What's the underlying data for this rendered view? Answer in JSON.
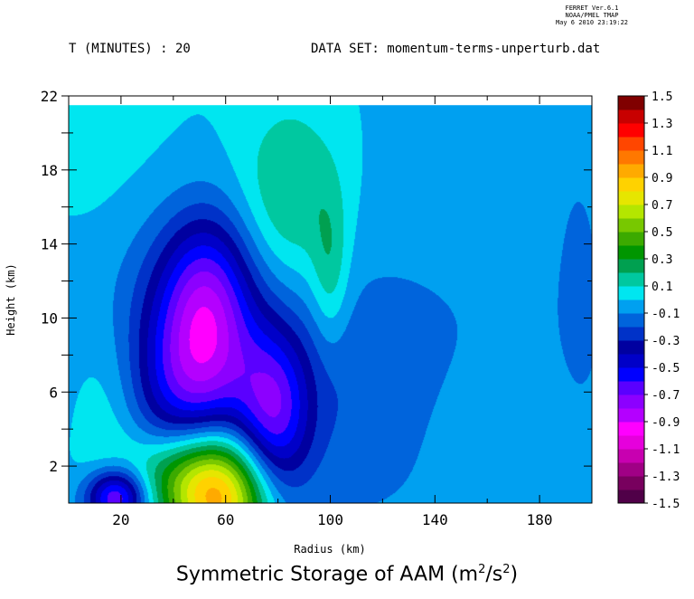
{
  "header": {
    "time_label": "T (MINUTES) : 20",
    "dataset_label": "DATA SET: momentum-terms-unperturb.dat",
    "stamp_line1": "FERRET Ver.6.1",
    "stamp_line2": "NOAA/PMEL TMAP",
    "stamp_line3": "May 6 2010 23:19:22"
  },
  "chart_data": {
    "type": "heatmap",
    "title_main": "Symmetric Storage of AAM (m",
    "title_sup1": "2",
    "title_mid": "/s",
    "title_sup2": "2",
    "title_end": ")",
    "xlabel": "Radius (km)",
    "ylabel": "Height (km)",
    "xlim": [
      0,
      200
    ],
    "ylim": [
      0,
      22
    ],
    "data_top": 21.5,
    "x_ticks": [
      "20",
      "60",
      "100",
      "140",
      "180"
    ],
    "y_ticks": [
      "2",
      "6",
      "10",
      "14",
      "18",
      "22"
    ],
    "background_level": 0.0,
    "colorbar": {
      "levels": [
        -1.5,
        -1.4,
        -1.3,
        -1.2,
        -1.1,
        -1.0,
        -0.9,
        -0.8,
        -0.7,
        -0.6,
        -0.5,
        -0.4,
        -0.3,
        -0.2,
        -0.1,
        0.0,
        0.1,
        0.2,
        0.3,
        0.4,
        0.5,
        0.6,
        0.7,
        0.8,
        0.9,
        1.0,
        1.1,
        1.2,
        1.3,
        1.4,
        1.5
      ],
      "colors": [
        "#500048",
        "#78005e",
        "#a00085",
        "#c800b0",
        "#e600dc",
        "#ff00ff",
        "#b400ff",
        "#8c00ff",
        "#5a00ff",
        "#0000ff",
        "#0000c8",
        "#0000a0",
        "#0032c8",
        "#0064dc",
        "#00a0f0",
        "#00e6f0",
        "#00c8a0",
        "#00a050",
        "#009600",
        "#3caa00",
        "#78c800",
        "#b4e600",
        "#e6e600",
        "#ffd200",
        "#ffaa00",
        "#ff7800",
        "#ff4600",
        "#ff0000",
        "#c80000",
        "#800000"
      ],
      "tick_labels": [
        "-1.5",
        "-1.3",
        "-1.1",
        "-0.9",
        "-0.7",
        "-0.5",
        "-0.3",
        "-0.1",
        "0.1",
        "0.3",
        "0.5",
        "0.7",
        "0.9",
        "1.1",
        "1.3",
        "1.5"
      ]
    },
    "features": [
      {
        "x": 100,
        "y": 5.5,
        "a": -0.12,
        "sx": 120,
        "sy": 8
      },
      {
        "x": 25,
        "y": 9.5,
        "a": -0.12,
        "sx": 18,
        "sy": 5
      },
      {
        "x": 110,
        "y": 6.8,
        "a": -0.08,
        "sx": 25,
        "sy": 3.5
      },
      {
        "x": 160,
        "y": 4.5,
        "a": 0.07,
        "sx": 25,
        "sy": 3
      },
      {
        "x": 22,
        "y": 16.5,
        "a": 0.07,
        "sx": 30,
        "sy": 4
      },
      {
        "x": 14,
        "y": 4.5,
        "a": 0.2,
        "sx": 12,
        "sy": 5
      },
      {
        "x": 38,
        "y": 1.7,
        "a": 0.22,
        "sx": 14,
        "sy": 1.5
      },
      {
        "x": 18,
        "y": 0.3,
        "a": -0.75,
        "sx": 8,
        "sy": 1.1
      },
      {
        "x": 54,
        "y": 9,
        "a": -0.58,
        "sx": 12,
        "sy": 4
      },
      {
        "x": 78,
        "y": 4.8,
        "a": -0.58,
        "sx": 10,
        "sy": 3.3
      },
      {
        "x": 50,
        "y": 12,
        "a": -0.22,
        "sx": 14,
        "sy": 3
      },
      {
        "x": 40,
        "y": 6.5,
        "a": -0.25,
        "sx": 12,
        "sy": 3
      },
      {
        "x": 57,
        "y": 0.4,
        "a": 1.05,
        "sx": 14,
        "sy": 2.4
      },
      {
        "x": 85,
        "y": 16.5,
        "a": 0.24,
        "sx": 14,
        "sy": 3.5
      },
      {
        "x": 100,
        "y": 12.5,
        "a": 0.2,
        "sx": 5,
        "sy": 3
      },
      {
        "x": 195,
        "y": 13,
        "a": -0.08,
        "sx": 6,
        "sy": 5
      }
    ]
  }
}
